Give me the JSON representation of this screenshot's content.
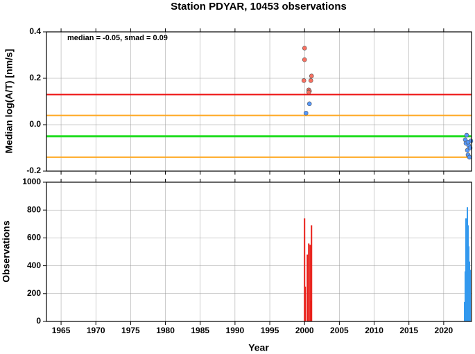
{
  "chart_data": [
    {
      "type": "scatter",
      "title": "Station PDYAR, 10453 observations",
      "y_label": "Median log(A/T) [nm/s]",
      "annotation": "median = -0.05, smad = 0.09",
      "xlim": [
        1962.9,
        2024
      ],
      "xticks": [
        1965,
        1970,
        1975,
        1980,
        1985,
        1990,
        1995,
        2000,
        2005,
        2010,
        2015,
        2020
      ],
      "ylim": [
        -0.2,
        0.4
      ],
      "yticks": [
        {
          "value": -0.2,
          "label": "-0.2"
        },
        {
          "value": 0,
          "label": "0.0"
        },
        0.2,
        0.4
      ],
      "grid": true,
      "lines": [
        {
          "value": 0.13,
          "color": "#ee1111"
        },
        {
          "value": 0.04,
          "color": "#ffa820"
        },
        {
          "value": -0.05,
          "color": "#22dd22"
        },
        {
          "value": -0.14,
          "color": "#ffa820"
        }
      ],
      "series": [
        {
          "color": "#f87060",
          "x": [
            2000.0,
            2000.0,
            1999.9,
            2000.6,
            2000.7,
            2000.9,
            2001.0,
            2000.6
          ],
          "values": [
            0.33,
            0.28,
            0.19,
            0.15,
            0.145,
            0.19,
            0.21,
            0.14
          ]
        },
        {
          "color": "#5599ff",
          "x": [
            2000.2,
            2000.7,
            2023.3,
            2023.1,
            2023.2,
            2023.6,
            2023.4,
            2023.5,
            2023.7,
            2023.8,
            2023.9,
            2023.5
          ],
          "values": [
            0.05,
            0.09,
            -0.045,
            -0.065,
            -0.08,
            -0.09,
            -0.11,
            -0.13,
            -0.14,
            -0.1,
            -0.07,
            -0.075
          ]
        }
      ]
    },
    {
      "type": "bar",
      "x_label": "Year",
      "y_label": "Observations",
      "xlim": [
        1962.9,
        2024
      ],
      "xticks": [
        1965,
        1970,
        1975,
        1980,
        1985,
        1990,
        1995,
        2000,
        2005,
        2010,
        2015,
        2020
      ],
      "ylim": [
        0,
        1000
      ],
      "yticks": [
        0,
        200,
        400,
        600,
        800,
        1000
      ],
      "grid": true,
      "series": [
        {
          "color": "#e8201a",
          "x": [
            2000.0,
            2000.1,
            2000.4,
            2000.6,
            2000.8,
            2000.9,
            2001.0
          ],
          "values": [
            740,
            250,
            480,
            560,
            550,
            150,
            690
          ]
        },
        {
          "color": "#3399ee",
          "x": [
            2023.0,
            2023.1,
            2023.2,
            2023.3,
            2023.4,
            2023.5,
            2023.6,
            2023.7,
            2023.8
          ],
          "values": [
            140,
            360,
            740,
            560,
            820,
            690,
            540,
            430,
            370
          ]
        }
      ]
    }
  ]
}
